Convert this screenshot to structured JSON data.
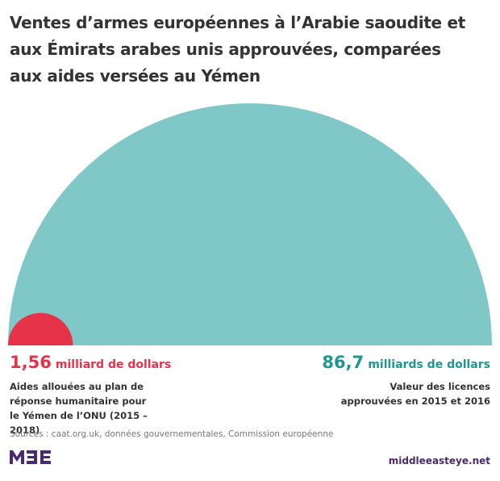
{
  "chart_data": {
    "type": "semicircle",
    "title": "Ventes d’armes européennes à l’Arabie saoudite et aux Émirats arabes unis approuvées, comparées aux aides versées au Yémen",
    "values": [
      1.56,
      86.7
    ],
    "value_labels": [
      "1,56",
      "86,7"
    ],
    "units": [
      "milliard de dollars",
      "milliards de dollars"
    ],
    "descriptions": [
      "Aides allouées au plan de réponse humanitaire pour le Yémen de l’ONU (2015 – 2018)",
      "Valeur des licences approuvées en 2015 et 2016"
    ],
    "colors": [
      "#e7334a",
      "#7fc8c7"
    ],
    "label_colors": [
      "#e7334a",
      "#1f9690"
    ],
    "source": "Sources : caat.org.uk, données gouvernementales, Commission européenne"
  },
  "footer": {
    "site": "middleeasteye.net"
  }
}
